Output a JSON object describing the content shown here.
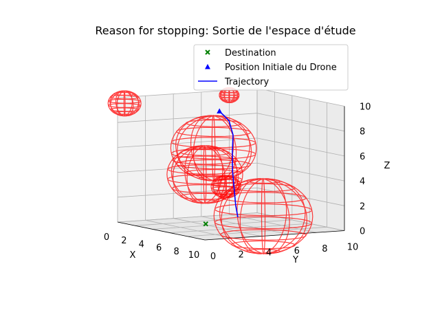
{
  "chart_data": {
    "type": "3d-scatter-line",
    "title": "Reason for stopping: Sortie de l'espace d'étude",
    "xlabel": "X",
    "ylabel": "Y",
    "zlabel": "Z",
    "xticks": [
      "0",
      "2",
      "4",
      "6",
      "8",
      "10"
    ],
    "yticks": [
      "0",
      "2",
      "4",
      "6",
      "8",
      "10"
    ],
    "zticks": [
      "0",
      "2",
      "4",
      "6",
      "8",
      "10"
    ],
    "xlim": [
      0,
      10
    ],
    "ylim": [
      0,
      10
    ],
    "zlim": [
      0,
      10
    ],
    "grid": true,
    "legend": {
      "position": "top-right",
      "entries": [
        {
          "label": "Destination",
          "marker": "x",
          "color": "#008000"
        },
        {
          "label": "Position Initiale du Drone",
          "marker": "triangle",
          "color": "#0000ff"
        },
        {
          "label": "Trajectory",
          "marker": "line",
          "color": "#0000ff"
        }
      ]
    },
    "destination": {
      "x": 8.5,
      "y": 1.0,
      "z": 1.0
    },
    "initial_position": {
      "x": 0.8,
      "y": 6.8,
      "z": 8.5
    },
    "trajectory": [
      {
        "x": 0.8,
        "y": 6.8,
        "z": 8.5
      },
      {
        "x": 0.5,
        "y": 7.3,
        "z": 8.1
      },
      {
        "x": 0.3,
        "y": 7.8,
        "z": 7.6
      },
      {
        "x": 0.6,
        "y": 7.9,
        "z": 6.5
      },
      {
        "x": 1.0,
        "y": 7.6,
        "z": 5.2
      },
      {
        "x": 1.5,
        "y": 7.3,
        "z": 3.8
      },
      {
        "x": 2.0,
        "y": 7.1,
        "z": 2.5
      },
      {
        "x": 2.5,
        "y": 6.9,
        "z": 1.2
      },
      {
        "x": 2.9,
        "y": 6.8,
        "z": 0.3
      }
    ],
    "obstacles": [
      {
        "x": 0.0,
        "y": 0.5,
        "z": 9.5,
        "r": 1.0
      },
      {
        "x": 3.0,
        "y": 5.0,
        "z": 6.0,
        "r": 2.6
      },
      {
        "x": 6.0,
        "y": 2.5,
        "z": 4.5,
        "r": 2.3
      },
      {
        "x": 6.5,
        "y": 3.7,
        "z": 3.5,
        "r": 0.9
      },
      {
        "x": 9.5,
        "y": 4.5,
        "z": 1.5,
        "r": 3.0
      },
      {
        "x": 0.0,
        "y": 8.0,
        "z": 9.6,
        "r": 0.6
      }
    ],
    "sphere_color": "#ff0000",
    "trajectory_color": "#0000ff",
    "destination_color": "#008000"
  }
}
